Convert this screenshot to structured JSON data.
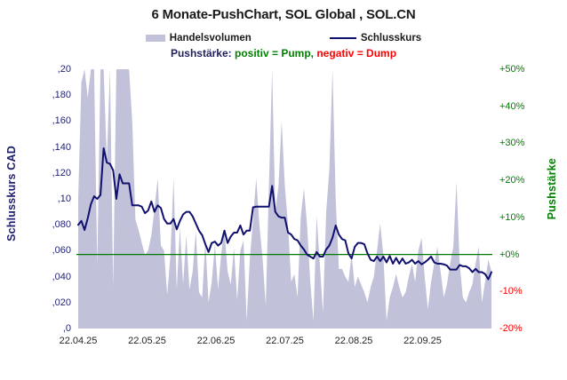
{
  "title": "6 Monate-PushChart, SOL Global , SOL.CN",
  "legend": {
    "volume_label": "Handelsvolumen",
    "price_label": "Schlusskurs"
  },
  "subtitle": {
    "prefix": "Pushstärke:",
    "positive_text": "positiv = Pump,",
    "negative_text": "negativ = Dump"
  },
  "colors": {
    "volume_fill": "#c1c1da",
    "price_line": "#10106e",
    "zero_line": "#007a00",
    "positive_text": "#008000",
    "negative_text": "#ff0000",
    "left_axis_text": "#1f1f70",
    "x_axis_text": "#262626"
  },
  "chart_data": {
    "type": "combo",
    "subtypes": [
      "area",
      "line"
    ],
    "grid": false,
    "legend_position": "top",
    "left_axis": {
      "title": "Schlusskurs CAD",
      "unit": "CAD",
      "min": 0,
      "max": 0.2,
      "ticks": [
        ",20",
        ",180",
        ",160",
        ",140",
        ",120",
        ",10",
        ",080",
        ",060",
        ",040",
        ",020",
        ",0"
      ]
    },
    "right_axis": {
      "title": "Pushstärke",
      "unit": "%",
      "min": -20,
      "max": 50,
      "ticks": [
        "+50%",
        "+40%",
        "+30%",
        "+20%",
        "+10%",
        "+0%",
        "-10%",
        "-20%"
      ],
      "zero_line": true
    },
    "x_axis": {
      "ticks": [
        "22.04.25",
        "22.05.25",
        "22.06.25",
        "22.07.25",
        "22.08.25",
        "22.09.25"
      ],
      "span_months": 6
    },
    "series": [
      {
        "name": "Handelsvolumen",
        "type": "area",
        "unit": "relative volume (fraction of plot height, 1.0 = clipped at top)",
        "values": [
          0.5,
          0.95,
          1.0,
          0.89,
          1.0,
          1.0,
          0.24,
          1.0,
          1.0,
          0.65,
          1.0,
          0.16,
          1.0,
          1.0,
          1.0,
          1.0,
          1.0,
          0.8,
          0.42,
          0.38,
          0.33,
          0.285,
          0.3,
          0.36,
          0.46,
          0.58,
          0.32,
          0.3,
          0.13,
          0.28,
          0.58,
          0.15,
          0.39,
          0.17,
          0.36,
          0.15,
          0.22,
          0.375,
          0.14,
          0.12,
          0.34,
          0.1,
          0.18,
          0.325,
          0.15,
          0.29,
          0.38,
          0.22,
          0.17,
          0.31,
          0.11,
          0.3,
          0.34,
          0.03,
          0.27,
          0.42,
          0.58,
          0.4,
          0.27,
          0.09,
          0.55,
          1.0,
          0.45,
          0.55,
          0.8,
          0.55,
          0.4,
          0.18,
          0.21,
          0.12,
          0.43,
          0.54,
          0.4,
          0.18,
          0.03,
          0.435,
          0.25,
          0.06,
          0.45,
          0.61,
          1.0,
          0.5,
          0.23,
          0.23,
          0.2,
          0.18,
          0.285,
          0.16,
          0.2,
          0.17,
          0.14,
          0.1,
          0.16,
          0.2,
          0.3,
          0.405,
          0.28,
          0.03,
          0.12,
          0.16,
          0.21,
          0.16,
          0.12,
          0.14,
          0.2,
          0.25,
          0.18,
          0.3,
          0.35,
          0.2,
          0.075,
          0.18,
          0.25,
          0.315,
          0.22,
          0.12,
          0.17,
          0.25,
          0.315,
          0.565,
          0.25,
          0.12,
          0.1,
          0.14,
          0.17,
          0.25,
          0.315,
          0.1,
          0.18,
          0.265,
          0.22
        ]
      },
      {
        "name": "Schlusskurs",
        "type": "line",
        "unit": "CAD",
        "values": [
          0.08,
          0.083,
          0.076,
          0.085,
          0.096,
          0.102,
          0.1,
          0.103,
          0.139,
          0.128,
          0.127,
          0.122,
          0.1,
          0.119,
          0.112,
          0.112,
          0.112,
          0.095,
          0.095,
          0.095,
          0.094,
          0.089,
          0.091,
          0.098,
          0.09,
          0.095,
          0.093,
          0.0845,
          0.081,
          0.081,
          0.0845,
          0.0765,
          0.083,
          0.088,
          0.09,
          0.09,
          0.0865,
          0.081,
          0.0755,
          0.072,
          0.065,
          0.059,
          0.066,
          0.067,
          0.064,
          0.066,
          0.0755,
          0.066,
          0.071,
          0.074,
          0.074,
          0.0795,
          0.0725,
          0.0755,
          0.0755,
          0.0935,
          0.094,
          0.094,
          0.094,
          0.094,
          0.094,
          0.11,
          0.09,
          0.0865,
          0.0855,
          0.0855,
          0.074,
          0.0725,
          0.069,
          0.068,
          0.064,
          0.061,
          0.057,
          0.0555,
          0.054,
          0.059,
          0.0555,
          0.0555,
          0.061,
          0.064,
          0.07,
          0.0795,
          0.0725,
          0.069,
          0.068,
          0.058,
          0.054,
          0.063,
          0.066,
          0.066,
          0.065,
          0.058,
          0.053,
          0.052,
          0.0555,
          0.052,
          0.0555,
          0.051,
          0.056,
          0.05,
          0.0545,
          0.05,
          0.054,
          0.05,
          0.051,
          0.053,
          0.05,
          0.052,
          0.0495,
          0.051,
          0.053,
          0.0555,
          0.051,
          0.05,
          0.05,
          0.0495,
          0.0485,
          0.0455,
          0.0455,
          0.0455,
          0.049,
          0.048,
          0.048,
          0.0465,
          0.0435,
          0.046,
          0.0435,
          0.0435,
          0.042,
          0.038,
          0.0435
        ]
      }
    ]
  }
}
